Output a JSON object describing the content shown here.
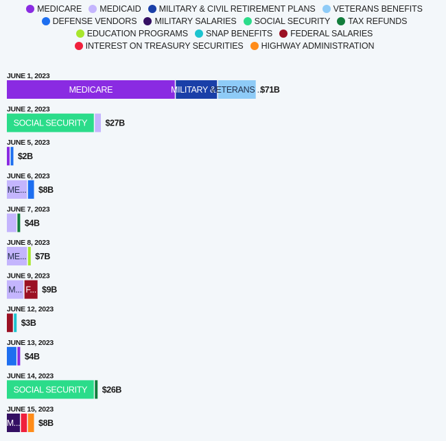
{
  "legend": [
    {
      "name": "MEDICARE",
      "color": "#8a2be2"
    },
    {
      "name": "MEDICAID",
      "color": "#c4b5fd"
    },
    {
      "name": "MILITARY & CIVIL RETIREMENT PLANS",
      "color": "#1a3fa8"
    },
    {
      "name": "VETERANS BENEFITS",
      "color": "#8ecbf7"
    },
    {
      "name": "DEFENSE VENDORS",
      "color": "#1e6ff0"
    },
    {
      "name": "MILITARY SALARIES",
      "color": "#341063"
    },
    {
      "name": "SOCIAL SECURITY",
      "color": "#2bdc8a"
    },
    {
      "name": "TAX REFUNDS",
      "color": "#127d3c"
    },
    {
      "name": "EDUCATION PROGRAMS",
      "color": "#a8e62c"
    },
    {
      "name": "SNAP BENEFITS",
      "color": "#1cc4cf"
    },
    {
      "name": "FEDERAL SALARIES",
      "color": "#9b1124"
    },
    {
      "name": "INTEREST ON TREASURY SECURITIES",
      "color": "#f0203c"
    },
    {
      "name": "HIGHWAY ADMINISTRATION",
      "color": "#ff8c1a"
    }
  ],
  "chart_data": {
    "type": "bar",
    "orientation": "horizontal-stacked",
    "categories": [
      "JUNE 1, 2023",
      "JUNE 2, 2023",
      "JUNE 5, 2023",
      "JUNE 6, 2023",
      "JUNE 7, 2023",
      "JUNE 8, 2023",
      "JUNE 9, 2023",
      "JUNE 12, 2023",
      "JUNE 13, 2023",
      "JUNE 14, 2023",
      "JUNE 15, 2023"
    ],
    "unit": "billions USD",
    "legend_position": "top",
    "rows": [
      {
        "date": "JUNE 1, 2023",
        "total_label": "$71B",
        "segments": [
          {
            "series": "MEDICARE",
            "value": 48.0,
            "label": "MEDICARE"
          },
          {
            "series": "MILITARY & CIVIL RETIREMENT PLANS",
            "value": 12.0,
            "label": "MILITARY &..."
          },
          {
            "series": "VETERANS BENEFITS",
            "value": 11.0,
            "label": "VETERANS ..."
          }
        ]
      },
      {
        "date": "JUNE 2, 2023",
        "total_label": "$27B",
        "segments": [
          {
            "series": "SOCIAL SECURITY",
            "value": 25.0,
            "label": "SOCIAL SECURITY"
          },
          {
            "series": "MEDICAID",
            "value": 2.0,
            "label": ""
          }
        ]
      },
      {
        "date": "JUNE 5, 2023",
        "total_label": "$2B",
        "segments": [
          {
            "series": "MEDICARE",
            "value": 1.0,
            "label": ""
          },
          {
            "series": "DEFENSE VENDORS",
            "value": 1.0,
            "label": ""
          }
        ]
      },
      {
        "date": "JUNE 6, 2023",
        "total_label": "$8B",
        "segments": [
          {
            "series": "MEDICAID",
            "value": 6.0,
            "label": "ME..."
          },
          {
            "series": "DEFENSE VENDORS",
            "value": 2.0,
            "label": ""
          }
        ]
      },
      {
        "date": "JUNE 7, 2023",
        "total_label": "$4B",
        "segments": [
          {
            "series": "MEDICAID",
            "value": 3.0,
            "label": ""
          },
          {
            "series": "TAX REFUNDS",
            "value": 1.0,
            "label": ""
          }
        ]
      },
      {
        "date": "JUNE 8, 2023",
        "total_label": "$7B",
        "segments": [
          {
            "series": "MEDICAID",
            "value": 6.0,
            "label": "ME..."
          },
          {
            "series": "EDUCATION PROGRAMS",
            "value": 1.0,
            "label": ""
          }
        ]
      },
      {
        "date": "JUNE 9, 2023",
        "total_label": "$9B",
        "segments": [
          {
            "series": "MEDICAID",
            "value": 5.0,
            "label": "M..."
          },
          {
            "series": "FEDERAL SALARIES",
            "value": 4.0,
            "label": "F..."
          }
        ]
      },
      {
        "date": "JUNE 12, 2023",
        "total_label": "$3B",
        "segments": [
          {
            "series": "FEDERAL SALARIES",
            "value": 2.0,
            "label": ""
          },
          {
            "series": "SNAP BENEFITS",
            "value": 1.0,
            "label": ""
          }
        ]
      },
      {
        "date": "JUNE 13, 2023",
        "total_label": "$4B",
        "segments": [
          {
            "series": "DEFENSE VENDORS",
            "value": 3.0,
            "label": ""
          },
          {
            "series": "MEDICARE",
            "value": 1.0,
            "label": ""
          }
        ]
      },
      {
        "date": "JUNE 14, 2023",
        "total_label": "$26B",
        "segments": [
          {
            "series": "SOCIAL SECURITY",
            "value": 25.0,
            "label": "SOCIAL SECURITY"
          },
          {
            "series": "TAX REFUNDS",
            "value": 1.0,
            "label": ""
          }
        ]
      },
      {
        "date": "JUNE 15, 2023",
        "total_label": "$8B",
        "segments": [
          {
            "series": "MILITARY SALARIES",
            "value": 4.0,
            "label": "M..."
          },
          {
            "series": "INTEREST ON TREASURY SECURITIES",
            "value": 2.0,
            "label": ""
          },
          {
            "series": "HIGHWAY ADMINISTRATION",
            "value": 2.0,
            "label": ""
          }
        ]
      }
    ]
  }
}
